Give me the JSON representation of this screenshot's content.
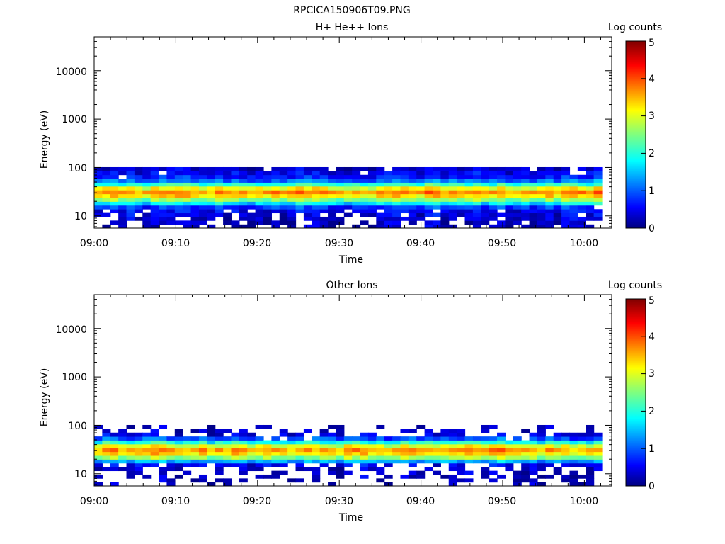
{
  "figure_title": "RPCICA150906T09.PNG",
  "chart_data": [
    {
      "type": "heatmap",
      "title": "H+ He++ Ions",
      "xlabel": "Time",
      "ylabel": "Energy (eV)",
      "xlim": [
        "09:00",
        "10:03"
      ],
      "ylim": [
        5.6,
        50000
      ],
      "yscale": "log",
      "xticks": [
        "09:00",
        "09:10",
        "09:20",
        "09:30",
        "09:40",
        "09:50",
        "10:00"
      ],
      "yticks": [
        "10",
        "100",
        "1000",
        "10000"
      ],
      "colorbar": {
        "label": "Log counts",
        "range": [
          0,
          5
        ],
        "ticks": [
          "0",
          "1",
          "2",
          "3",
          "4",
          "5"
        ],
        "colormap": "jet"
      },
      "energy_bins_eV": [
        6.1,
        7.3,
        8.8,
        10.5,
        12.6,
        15.1,
        18.1,
        21.7,
        26.0,
        31.2,
        37.4,
        44.9,
        53.8,
        64.5,
        77.4,
        92.8
      ],
      "time_start": "09:00",
      "time_step_min": 1,
      "n_time_steps": 63,
      "profile_log_counts": [
        0.3,
        0.3,
        0.4,
        0.5,
        0.6,
        0.9,
        1.8,
        2.6,
        3.3,
        3.7,
        3.1,
        2.1,
        1.2,
        0.8,
        0.6,
        0.4
      ],
      "fill_probability": [
        0.55,
        0.6,
        0.7,
        0.8,
        0.9,
        0.97,
        1,
        1,
        1,
        1,
        1,
        1,
        1,
        0.98,
        0.96,
        0.9
      ]
    },
    {
      "type": "heatmap",
      "title": "Other Ions",
      "xlabel": "Time",
      "ylabel": "Energy (eV)",
      "xlim": [
        "09:00",
        "10:03"
      ],
      "ylim": [
        5.6,
        50000
      ],
      "yscale": "log",
      "xticks": [
        "09:00",
        "09:10",
        "09:20",
        "09:30",
        "09:40",
        "09:50",
        "10:00"
      ],
      "yticks": [
        "10",
        "100",
        "1000",
        "10000"
      ],
      "colorbar": {
        "label": "Log counts",
        "range": [
          0,
          5
        ],
        "ticks": [
          "0",
          "1",
          "2",
          "3",
          "4",
          "5"
        ],
        "colormap": "jet"
      },
      "energy_bins_eV": [
        6.1,
        7.3,
        8.8,
        10.5,
        12.6,
        15.1,
        18.1,
        21.7,
        26.0,
        31.2,
        37.4,
        44.9,
        53.8,
        64.5,
        77.4,
        92.8
      ],
      "time_start": "09:00",
      "time_step_min": 1,
      "n_time_steps": 63,
      "profile_log_counts": [
        0.3,
        0.3,
        0.3,
        0.35,
        0.4,
        0.6,
        1.5,
        2.6,
        3.3,
        3.6,
        3.0,
        2.0,
        1.1,
        0.5,
        0.35,
        0.3
      ],
      "fill_probability": [
        0.35,
        0.35,
        0.4,
        0.45,
        0.55,
        0.7,
        1,
        1,
        1,
        1,
        1,
        1,
        0.95,
        0.55,
        0.35,
        0.2
      ]
    }
  ]
}
